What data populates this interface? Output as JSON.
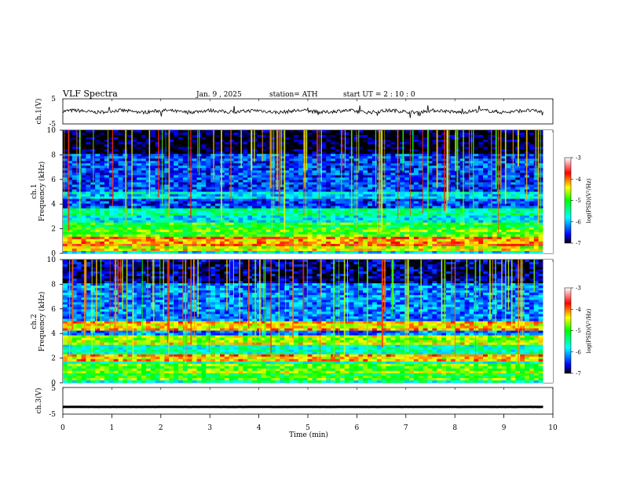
{
  "header": {
    "title": "VLF  Spectra",
    "date": "Jan.  9  , 2025",
    "station": "station= ATH",
    "start": "start  UT  =   2  : 10 : 0"
  },
  "chart_data": [
    {
      "type": "line",
      "name": "ch1-waveform",
      "ylabel": "ch.1(V)",
      "ylim": [
        -5,
        5
      ],
      "yticks": [
        "5",
        "-5"
      ],
      "xlim": [
        0,
        10
      ],
      "baseline_level": 0,
      "grid": false
    },
    {
      "type": "heatmap",
      "name": "ch1-spectrogram",
      "ylabel_line1": "ch.1",
      "ylabel_line2": "Frequency (kHz)",
      "ylim": [
        0,
        10
      ],
      "yticks": [
        "0",
        "2",
        "4",
        "6",
        "8",
        "10"
      ],
      "xlim": [
        0,
        9.8
      ],
      "colorbar": {
        "label": "log(PSD)(V²/Hz)",
        "min": -7,
        "max": -3,
        "ticks": [
          "-3",
          "-4",
          "-5",
          "-6",
          "-7"
        ]
      },
      "background_level": -6.4,
      "bands_khz": [
        {
          "f": 0.5,
          "level": -4.6
        },
        {
          "f": 1.0,
          "level": -4.3
        },
        {
          "f": 1.6,
          "level": -5.0
        },
        {
          "f": 2.2,
          "level": -5.2
        },
        {
          "f": 3.4,
          "level": -5.6
        },
        {
          "f": 4.7,
          "level": -6.0
        }
      ]
    },
    {
      "type": "heatmap",
      "name": "ch2-spectrogram",
      "ylabel_line1": "ch.2",
      "ylabel_line2": "Frequency (kHz)",
      "ylim": [
        0,
        10
      ],
      "yticks": [
        "0",
        "2",
        "4",
        "6",
        "8",
        "10"
      ],
      "xlim": [
        0,
        9.8
      ],
      "colorbar": {
        "label": "log(PSD)(V²/Hz)",
        "min": -7,
        "max": -3,
        "ticks": [
          "-3",
          "-4",
          "-5",
          "-6",
          "-7"
        ]
      },
      "background_level": -6.2,
      "bands_khz": [
        {
          "f": 0.6,
          "level": -5.2
        },
        {
          "f": 1.2,
          "level": -5.0
        },
        {
          "f": 2.0,
          "level": -4.4
        },
        {
          "f": 3.5,
          "level": -4.8
        },
        {
          "f": 4.6,
          "level": -4.5
        }
      ]
    },
    {
      "type": "line",
      "name": "ch3-waveform",
      "ylabel": "ch.3(V)",
      "ylim": [
        -5,
        5
      ],
      "yticks": [
        "5",
        "-5"
      ],
      "xlim": [
        0,
        10
      ],
      "baseline_level": -2.3,
      "grid": false
    }
  ],
  "x_axis": {
    "label": "Time  (min)",
    "ticks": [
      "0",
      "1",
      "2",
      "3",
      "4",
      "5",
      "6",
      "7",
      "8",
      "9",
      "10"
    ]
  },
  "colors": {
    "colormap": [
      "#000000",
      "#0000ff",
      "#00ffff",
      "#00ff00",
      "#ffff00",
      "#ff0000",
      "#ffffff"
    ],
    "trace": "#000000"
  }
}
